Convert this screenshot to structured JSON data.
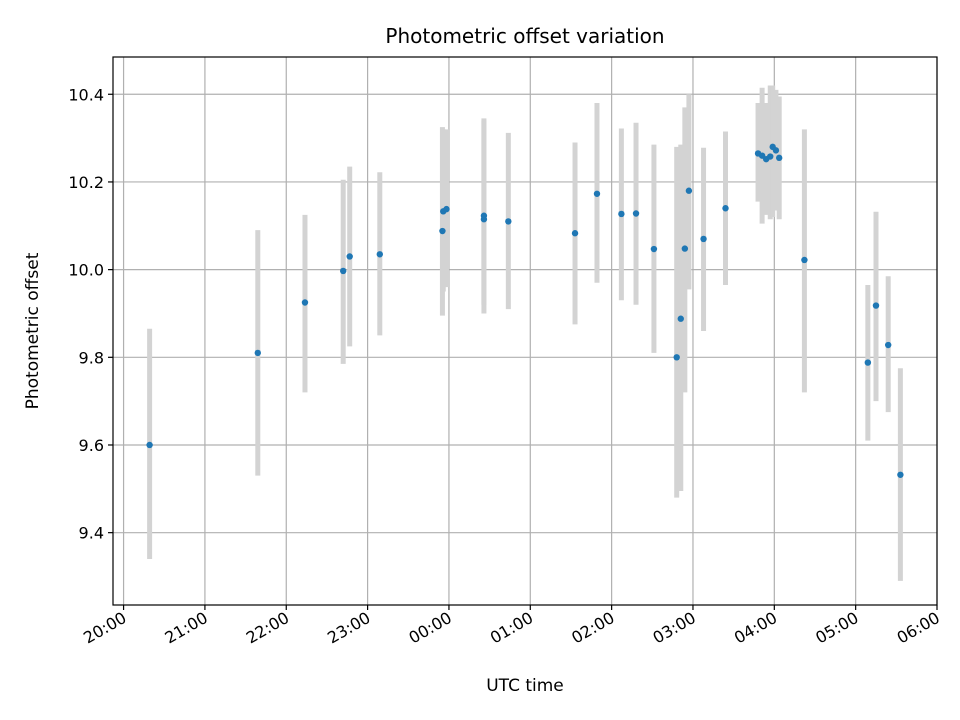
{
  "chart_data": {
    "type": "scatter",
    "title": "Photometric offset variation",
    "xlabel": "UTC time",
    "ylabel": "Photometric offset",
    "x_unit": "UTC hour (past 20:00 continues beyond 24)",
    "xlim": [
      19.87,
      30.0
    ],
    "ylim": [
      9.235,
      10.485
    ],
    "x_ticks": [
      20,
      21,
      22,
      23,
      24,
      25,
      26,
      27,
      28,
      29,
      30
    ],
    "x_tick_labels": [
      "20:00",
      "21:00",
      "22:00",
      "23:00",
      "00:00",
      "01:00",
      "02:00",
      "03:00",
      "04:00",
      "05:00",
      "06:00"
    ],
    "y_ticks": [
      9.4,
      9.6,
      9.8,
      10.0,
      10.2,
      10.4
    ],
    "y_tick_labels": [
      "9.4",
      "9.6",
      "9.8",
      "10.0",
      "10.2",
      "10.4"
    ],
    "grid": true,
    "marker_color": "#1f77b4",
    "errorbar_color": "#d3d3d3",
    "points": [
      {
        "x": 20.32,
        "y": 9.6,
        "lo": 9.34,
        "hi": 9.865
      },
      {
        "x": 21.65,
        "y": 9.81,
        "lo": 9.53,
        "hi": 10.09
      },
      {
        "x": 22.23,
        "y": 9.925,
        "lo": 9.72,
        "hi": 10.125
      },
      {
        "x": 22.7,
        "y": 9.997,
        "lo": 9.785,
        "hi": 10.205
      },
      {
        "x": 22.78,
        "y": 10.03,
        "lo": 9.825,
        "hi": 10.235
      },
      {
        "x": 23.15,
        "y": 10.035,
        "lo": 9.85,
        "hi": 10.222
      },
      {
        "x": 23.92,
        "y": 10.088,
        "lo": 9.895,
        "hi": 10.325
      },
      {
        "x": 23.93,
        "y": 10.133,
        "lo": 9.95,
        "hi": 10.32
      },
      {
        "x": 23.97,
        "y": 10.138,
        "lo": 9.96,
        "hi": 10.32
      },
      {
        "x": 24.43,
        "y": 10.115,
        "lo": 9.9,
        "hi": 10.345
      },
      {
        "x": 24.43,
        "y": 10.123,
        "lo": 9.92,
        "hi": 10.34
      },
      {
        "x": 24.73,
        "y": 10.11,
        "lo": 9.91,
        "hi": 10.312
      },
      {
        "x": 25.55,
        "y": 10.083,
        "lo": 9.875,
        "hi": 10.29
      },
      {
        "x": 25.82,
        "y": 10.173,
        "lo": 9.97,
        "hi": 10.38
      },
      {
        "x": 26.12,
        "y": 10.127,
        "lo": 9.93,
        "hi": 10.322
      },
      {
        "x": 26.3,
        "y": 10.128,
        "lo": 9.92,
        "hi": 10.335
      },
      {
        "x": 26.52,
        "y": 10.047,
        "lo": 9.81,
        "hi": 10.285
      },
      {
        "x": 26.8,
        "y": 9.8,
        "lo": 9.48,
        "hi": 10.28
      },
      {
        "x": 26.85,
        "y": 9.888,
        "lo": 9.495,
        "hi": 10.285
      },
      {
        "x": 26.9,
        "y": 10.048,
        "lo": 9.72,
        "hi": 10.37
      },
      {
        "x": 26.95,
        "y": 10.18,
        "lo": 9.955,
        "hi": 10.4
      },
      {
        "x": 27.13,
        "y": 10.07,
        "lo": 9.86,
        "hi": 10.278
      },
      {
        "x": 27.4,
        "y": 10.14,
        "lo": 9.965,
        "hi": 10.315
      },
      {
        "x": 27.8,
        "y": 10.265,
        "lo": 10.155,
        "hi": 10.38
      },
      {
        "x": 27.85,
        "y": 10.26,
        "lo": 10.105,
        "hi": 10.415
      },
      {
        "x": 27.9,
        "y": 10.252,
        "lo": 10.125,
        "hi": 10.38
      },
      {
        "x": 27.95,
        "y": 10.258,
        "lo": 10.115,
        "hi": 10.42
      },
      {
        "x": 27.98,
        "y": 10.28,
        "lo": 10.12,
        "hi": 10.42
      },
      {
        "x": 28.02,
        "y": 10.272,
        "lo": 10.135,
        "hi": 10.41
      },
      {
        "x": 28.06,
        "y": 10.255,
        "lo": 10.115,
        "hi": 10.395
      },
      {
        "x": 28.37,
        "y": 10.022,
        "lo": 9.72,
        "hi": 10.32
      },
      {
        "x": 29.15,
        "y": 9.788,
        "lo": 9.61,
        "hi": 9.965
      },
      {
        "x": 29.25,
        "y": 9.918,
        "lo": 9.7,
        "hi": 10.132
      },
      {
        "x": 29.4,
        "y": 9.828,
        "lo": 9.675,
        "hi": 9.985
      },
      {
        "x": 29.55,
        "y": 9.532,
        "lo": 9.29,
        "hi": 9.775
      }
    ]
  }
}
